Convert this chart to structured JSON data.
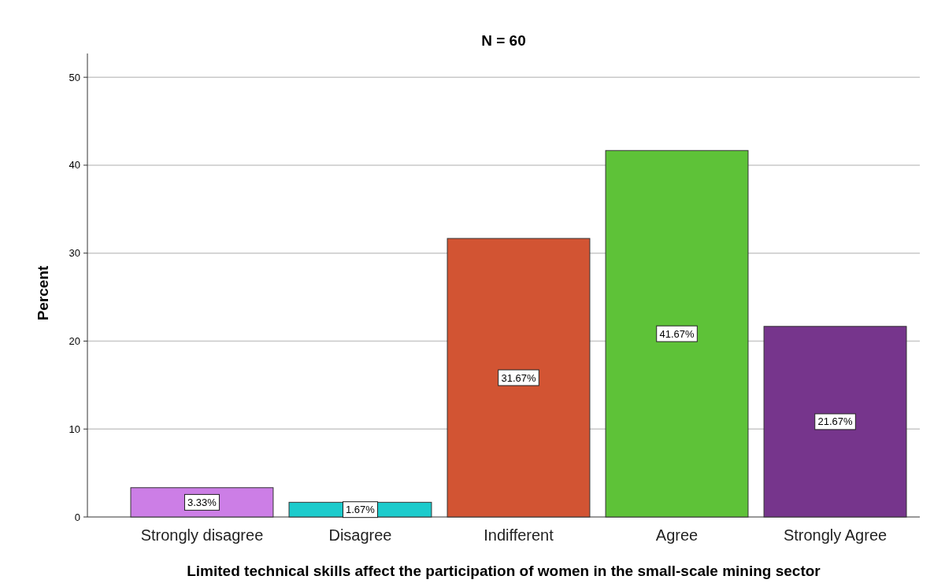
{
  "chart_data": {
    "type": "bar",
    "title": "N = 60",
    "xlabel": "Limited technical skills affect the participation of women in the small-scale mining sector",
    "ylabel": "Percent",
    "categories": [
      "Strongly disagree",
      "Disagree",
      "Indifferent",
      "Agree",
      "Strongly Agree"
    ],
    "values": [
      3.33,
      1.67,
      31.67,
      41.67,
      21.67
    ],
    "colors": [
      "#cc7ee6",
      "#1ccbcc",
      "#d25433",
      "#5ec238",
      "#76358c"
    ],
    "value_labels": [
      "3.33%",
      "1.67%",
      "31.67%",
      "41.67%",
      "21.67%"
    ],
    "ylim": [
      0,
      52.7
    ],
    "yticks": [
      0,
      10,
      20,
      30,
      40,
      50
    ],
    "grid": "y"
  }
}
